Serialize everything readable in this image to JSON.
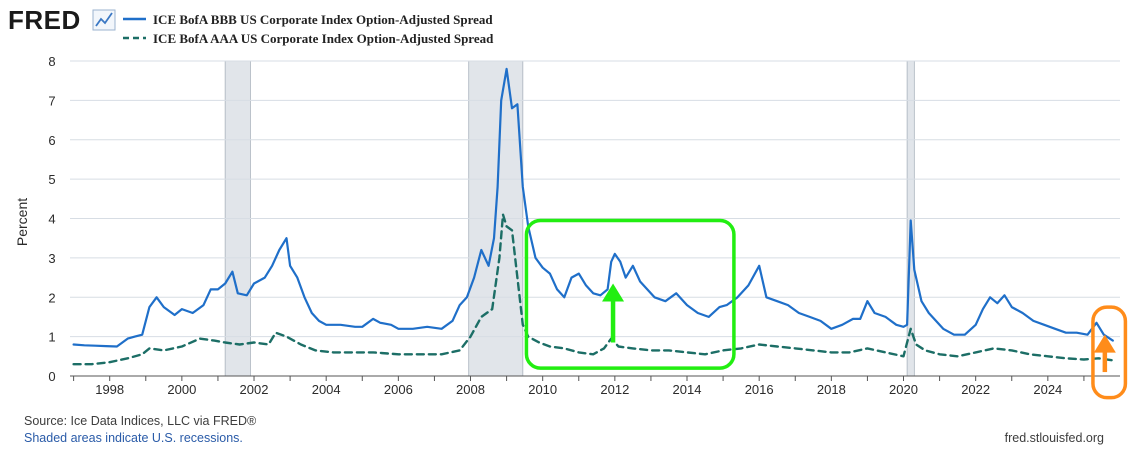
{
  "header": {
    "logo_text": "FRED",
    "logo_icon": "chart-line-icon"
  },
  "chart_data": {
    "type": "line",
    "title": "",
    "xlabel": "",
    "ylabel": "Percent",
    "xlim": [
      1996.9,
      2026.0
    ],
    "ylim": [
      0,
      8
    ],
    "x_ticks": [
      1998,
      2000,
      2002,
      2004,
      2006,
      2008,
      2010,
      2012,
      2014,
      2016,
      2018,
      2020,
      2022,
      2024
    ],
    "y_ticks": [
      0,
      1,
      2,
      3,
      4,
      5,
      6,
      7,
      8
    ],
    "grid": true,
    "legend_position": "top-left",
    "recessions": [
      [
        2001.2,
        2001.9
      ],
      [
        2007.95,
        2009.45
      ],
      [
        2020.1,
        2020.3
      ]
    ],
    "series": [
      {
        "name": "ICE BofA BBB US Corporate Index Option-Adjusted Spread",
        "color": "#1f6fc9",
        "style": "solid",
        "points": [
          [
            1997.0,
            0.8
          ],
          [
            1997.3,
            0.78
          ],
          [
            1997.6,
            0.77
          ],
          [
            1997.9,
            0.76
          ],
          [
            1998.2,
            0.75
          ],
          [
            1998.5,
            0.95
          ],
          [
            1998.7,
            1.0
          ],
          [
            1998.9,
            1.05
          ],
          [
            1999.1,
            1.75
          ],
          [
            1999.3,
            2.0
          ],
          [
            1999.5,
            1.75
          ],
          [
            1999.8,
            1.55
          ],
          [
            2000.0,
            1.7
          ],
          [
            2000.3,
            1.6
          ],
          [
            2000.6,
            1.8
          ],
          [
            2000.8,
            2.2
          ],
          [
            2001.0,
            2.2
          ],
          [
            2001.2,
            2.35
          ],
          [
            2001.4,
            2.65
          ],
          [
            2001.55,
            2.1
          ],
          [
            2001.8,
            2.05
          ],
          [
            2002.0,
            2.35
          ],
          [
            2002.3,
            2.5
          ],
          [
            2002.5,
            2.8
          ],
          [
            2002.7,
            3.2
          ],
          [
            2002.9,
            3.5
          ],
          [
            2003.0,
            2.8
          ],
          [
            2003.2,
            2.5
          ],
          [
            2003.4,
            2.0
          ],
          [
            2003.6,
            1.6
          ],
          [
            2003.8,
            1.4
          ],
          [
            2004.0,
            1.3
          ],
          [
            2004.4,
            1.3
          ],
          [
            2004.8,
            1.25
          ],
          [
            2005.0,
            1.25
          ],
          [
            2005.3,
            1.45
          ],
          [
            2005.5,
            1.35
          ],
          [
            2005.8,
            1.3
          ],
          [
            2006.0,
            1.2
          ],
          [
            2006.4,
            1.2
          ],
          [
            2006.8,
            1.25
          ],
          [
            2007.2,
            1.2
          ],
          [
            2007.5,
            1.4
          ],
          [
            2007.7,
            1.8
          ],
          [
            2007.9,
            2.0
          ],
          [
            2008.1,
            2.5
          ],
          [
            2008.3,
            3.2
          ],
          [
            2008.5,
            2.8
          ],
          [
            2008.65,
            3.5
          ],
          [
            2008.75,
            4.8
          ],
          [
            2008.85,
            7.0
          ],
          [
            2009.0,
            7.8
          ],
          [
            2009.15,
            6.8
          ],
          [
            2009.3,
            6.9
          ],
          [
            2009.45,
            4.8
          ],
          [
            2009.6,
            3.8
          ],
          [
            2009.8,
            3.0
          ],
          [
            2010.0,
            2.75
          ],
          [
            2010.2,
            2.6
          ],
          [
            2010.4,
            2.2
          ],
          [
            2010.6,
            2.0
          ],
          [
            2010.8,
            2.5
          ],
          [
            2011.0,
            2.6
          ],
          [
            2011.2,
            2.3
          ],
          [
            2011.4,
            2.1
          ],
          [
            2011.6,
            2.05
          ],
          [
            2011.8,
            2.2
          ],
          [
            2011.9,
            2.9
          ],
          [
            2012.0,
            3.1
          ],
          [
            2012.15,
            2.9
          ],
          [
            2012.3,
            2.5
          ],
          [
            2012.5,
            2.8
          ],
          [
            2012.7,
            2.4
          ],
          [
            2012.9,
            2.2
          ],
          [
            2013.1,
            2.0
          ],
          [
            2013.4,
            1.9
          ],
          [
            2013.7,
            2.1
          ],
          [
            2014.0,
            1.8
          ],
          [
            2014.3,
            1.6
          ],
          [
            2014.6,
            1.5
          ],
          [
            2014.9,
            1.75
          ],
          [
            2015.1,
            1.8
          ],
          [
            2015.4,
            2.0
          ],
          [
            2015.7,
            2.3
          ],
          [
            2016.0,
            2.8
          ],
          [
            2016.2,
            2.0
          ],
          [
            2016.5,
            1.9
          ],
          [
            2016.8,
            1.8
          ],
          [
            2017.1,
            1.6
          ],
          [
            2017.4,
            1.5
          ],
          [
            2017.7,
            1.4
          ],
          [
            2018.0,
            1.2
          ],
          [
            2018.3,
            1.3
          ],
          [
            2018.6,
            1.45
          ],
          [
            2018.8,
            1.45
          ],
          [
            2019.0,
            1.9
          ],
          [
            2019.2,
            1.6
          ],
          [
            2019.5,
            1.5
          ],
          [
            2019.8,
            1.3
          ],
          [
            2020.0,
            1.25
          ],
          [
            2020.1,
            1.3
          ],
          [
            2020.2,
            3.95
          ],
          [
            2020.3,
            2.7
          ],
          [
            2020.5,
            1.9
          ],
          [
            2020.7,
            1.6
          ],
          [
            2020.9,
            1.4
          ],
          [
            2021.1,
            1.2
          ],
          [
            2021.4,
            1.05
          ],
          [
            2021.7,
            1.05
          ],
          [
            2022.0,
            1.3
          ],
          [
            2022.2,
            1.7
          ],
          [
            2022.4,
            2.0
          ],
          [
            2022.6,
            1.85
          ],
          [
            2022.8,
            2.05
          ],
          [
            2023.0,
            1.75
          ],
          [
            2023.3,
            1.6
          ],
          [
            2023.6,
            1.4
          ],
          [
            2023.9,
            1.3
          ],
          [
            2024.2,
            1.2
          ],
          [
            2024.5,
            1.1
          ],
          [
            2024.8,
            1.1
          ],
          [
            2025.1,
            1.05
          ],
          [
            2025.35,
            1.35
          ],
          [
            2025.55,
            1.05
          ],
          [
            2025.8,
            0.9
          ]
        ]
      },
      {
        "name": "ICE BofA AAA US Corporate Index Option-Adjusted Spread",
        "color": "#1c6e66",
        "style": "dashed",
        "points": [
          [
            1997.0,
            0.3
          ],
          [
            1997.5,
            0.3
          ],
          [
            1998.0,
            0.35
          ],
          [
            1998.5,
            0.45
          ],
          [
            1998.9,
            0.55
          ],
          [
            1999.1,
            0.7
          ],
          [
            1999.5,
            0.65
          ],
          [
            2000.0,
            0.75
          ],
          [
            2000.5,
            0.95
          ],
          [
            2000.9,
            0.9
          ],
          [
            2001.2,
            0.85
          ],
          [
            2001.6,
            0.8
          ],
          [
            2002.0,
            0.85
          ],
          [
            2002.4,
            0.8
          ],
          [
            2002.6,
            1.1
          ],
          [
            2002.9,
            1.0
          ],
          [
            2003.3,
            0.8
          ],
          [
            2003.7,
            0.65
          ],
          [
            2004.2,
            0.6
          ],
          [
            2004.8,
            0.6
          ],
          [
            2005.3,
            0.6
          ],
          [
            2006.0,
            0.55
          ],
          [
            2006.6,
            0.55
          ],
          [
            2007.2,
            0.55
          ],
          [
            2007.7,
            0.65
          ],
          [
            2008.0,
            1.0
          ],
          [
            2008.3,
            1.5
          ],
          [
            2008.6,
            1.7
          ],
          [
            2008.8,
            3.0
          ],
          [
            2008.9,
            4.1
          ],
          [
            2009.0,
            3.8
          ],
          [
            2009.15,
            3.7
          ],
          [
            2009.3,
            2.5
          ],
          [
            2009.45,
            1.3
          ],
          [
            2009.6,
            1.0
          ],
          [
            2009.9,
            0.85
          ],
          [
            2010.2,
            0.75
          ],
          [
            2010.6,
            0.7
          ],
          [
            2011.0,
            0.6
          ],
          [
            2011.4,
            0.55
          ],
          [
            2011.7,
            0.7
          ],
          [
            2011.9,
            0.95
          ],
          [
            2012.1,
            0.75
          ],
          [
            2012.5,
            0.7
          ],
          [
            2013.0,
            0.65
          ],
          [
            2013.5,
            0.65
          ],
          [
            2014.0,
            0.6
          ],
          [
            2014.5,
            0.55
          ],
          [
            2015.0,
            0.65
          ],
          [
            2015.5,
            0.7
          ],
          [
            2016.0,
            0.8
          ],
          [
            2016.5,
            0.75
          ],
          [
            2017.0,
            0.7
          ],
          [
            2017.5,
            0.65
          ],
          [
            2018.0,
            0.6
          ],
          [
            2018.5,
            0.6
          ],
          [
            2019.0,
            0.7
          ],
          [
            2019.5,
            0.6
          ],
          [
            2020.0,
            0.5
          ],
          [
            2020.2,
            1.2
          ],
          [
            2020.35,
            0.8
          ],
          [
            2020.6,
            0.65
          ],
          [
            2021.0,
            0.55
          ],
          [
            2021.5,
            0.5
          ],
          [
            2022.0,
            0.6
          ],
          [
            2022.5,
            0.7
          ],
          [
            2023.0,
            0.65
          ],
          [
            2023.5,
            0.55
          ],
          [
            2024.0,
            0.5
          ],
          [
            2024.5,
            0.45
          ],
          [
            2025.0,
            0.42
          ],
          [
            2025.4,
            0.45
          ],
          [
            2025.8,
            0.4
          ]
        ]
      }
    ],
    "annotations": [
      {
        "type": "rounded-box",
        "color": "#22ee11",
        "x_range": [
          2009.55,
          2015.3
        ],
        "y_range": [
          0.2,
          3.95
        ]
      },
      {
        "type": "arrow-up",
        "color": "#22ee11",
        "x": 2011.95,
        "from": 0.85,
        "to": 2.35
      },
      {
        "type": "rounded-box",
        "color": "#ff8c1a",
        "x_range": [
          2025.25,
          2026.15
        ],
        "y_range": [
          -0.55,
          1.75
        ]
      },
      {
        "type": "arrow-up",
        "color": "#ff8c1a",
        "x": 2025.58,
        "from": 0.1,
        "to": 1.05
      }
    ]
  },
  "footer": {
    "source": "Source: Ice Data Indices, LLC via FRED®",
    "recession_note": "Shaded areas indicate U.S. recessions.",
    "site": "fred.stlouisfed.org"
  }
}
